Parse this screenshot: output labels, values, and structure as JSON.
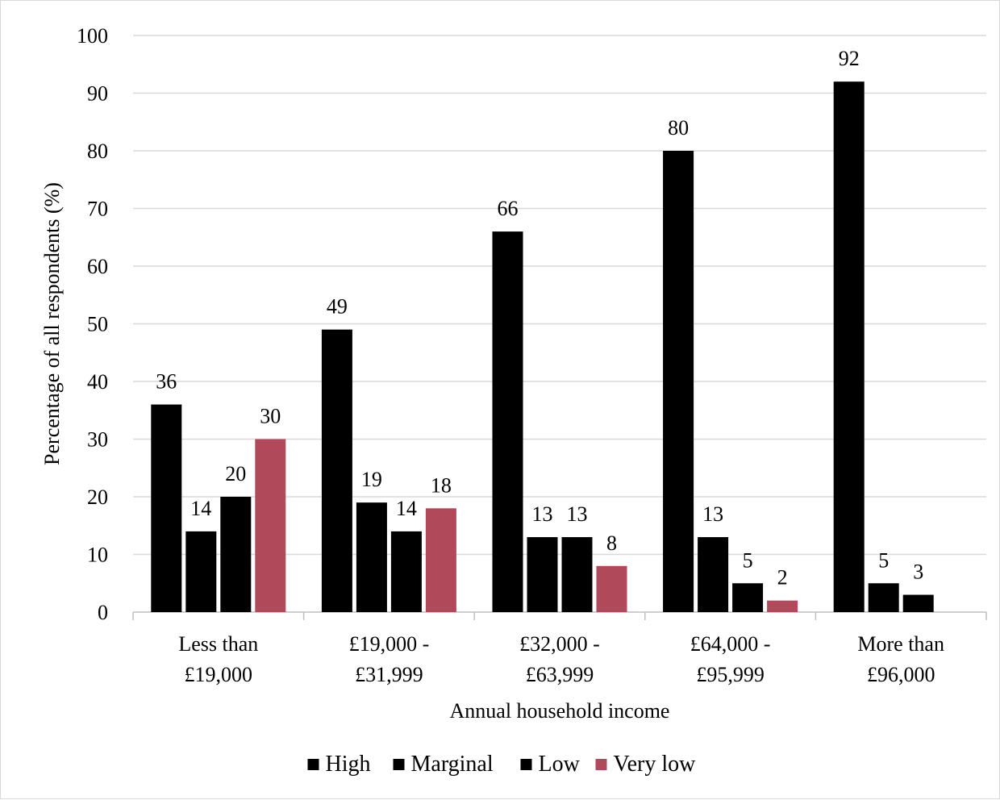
{
  "chart_data": {
    "type": "bar",
    "title": "",
    "xlabel": "Annual household income",
    "ylabel": "Percentage of all respondents (%)",
    "ylim": [
      0,
      100
    ],
    "yticks": [
      0,
      10,
      20,
      30,
      40,
      50,
      60,
      70,
      80,
      90,
      100
    ],
    "grid": true,
    "legend_position": "bottom",
    "categories": [
      [
        "Less than",
        "£19,000"
      ],
      [
        "£19,000 -",
        "£31,999"
      ],
      [
        "£32,000 -",
        "£63,999"
      ],
      [
        "£64,000 -",
        "£95,999"
      ],
      [
        "More than",
        "£96,000"
      ]
    ],
    "series": [
      {
        "name": "High",
        "color": "#000000",
        "values": [
          36,
          49,
          66,
          80,
          92
        ]
      },
      {
        "name": "Marginal",
        "color": "#000000",
        "values": [
          14,
          19,
          13,
          13,
          5
        ]
      },
      {
        "name": "Low",
        "color": "#000000",
        "values": [
          20,
          14,
          13,
          5,
          3
        ]
      },
      {
        "name": "Very low",
        "color": "#b04a5a",
        "values": [
          30,
          18,
          8,
          2,
          null
        ]
      }
    ]
  }
}
